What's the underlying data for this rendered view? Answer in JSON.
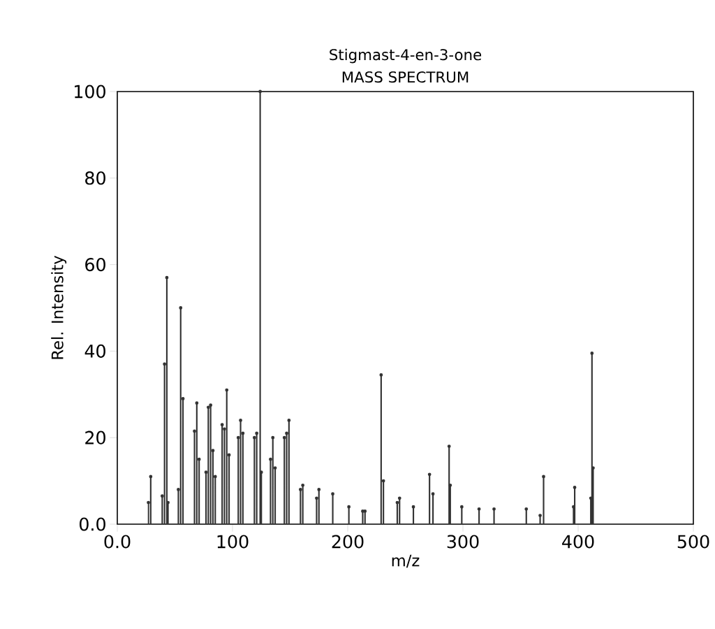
{
  "chart_data": {
    "type": "lollipop",
    "marker": "circle",
    "title": "Stigmast-4-en-3-one",
    "subtitle": "MASS SPECTRUM",
    "xlabel": "m/z",
    "ylabel": "Rel. Intensity",
    "x": [
      27,
      29,
      39,
      41,
      43,
      44,
      53,
      55,
      57,
      67,
      69,
      71,
      77,
      79,
      81,
      83,
      85,
      91,
      93,
      95,
      97,
      105,
      107,
      109,
      119,
      121,
      124,
      125,
      133,
      135,
      137,
      145,
      147,
      149,
      159,
      161,
      173,
      175,
      187,
      201,
      213,
      215,
      229,
      231,
      243,
      245,
      257,
      271,
      274,
      288,
      289,
      299,
      314,
      327,
      355,
      367,
      370,
      396,
      397,
      411,
      412,
      413
    ],
    "values": [
      5,
      11,
      6.5,
      37,
      57,
      5,
      8,
      50,
      29,
      21.5,
      28,
      15,
      12,
      27,
      27.5,
      17,
      11,
      23,
      22,
      31,
      16,
      20,
      24,
      21,
      20,
      21,
      100,
      12,
      15,
      20,
      13,
      20,
      21,
      24,
      8,
      9,
      6,
      8,
      7,
      4,
      3,
      3,
      34.5,
      10,
      5,
      6,
      4,
      11.5,
      7,
      18,
      9,
      4,
      3.5,
      3.5,
      3.5,
      2,
      11,
      4,
      8.5,
      6,
      39.5,
      13
    ],
    "color": "#333333",
    "xlim": [
      0,
      500
    ],
    "ylim": [
      0,
      100
    ],
    "xticks": [
      {
        "value": 0,
        "label": "0.0"
      },
      100,
      200,
      300,
      400,
      500
    ],
    "yticks": [
      {
        "value": 0,
        "label": "0.0"
      },
      20,
      40,
      60,
      80,
      100
    ],
    "grid": false
  }
}
